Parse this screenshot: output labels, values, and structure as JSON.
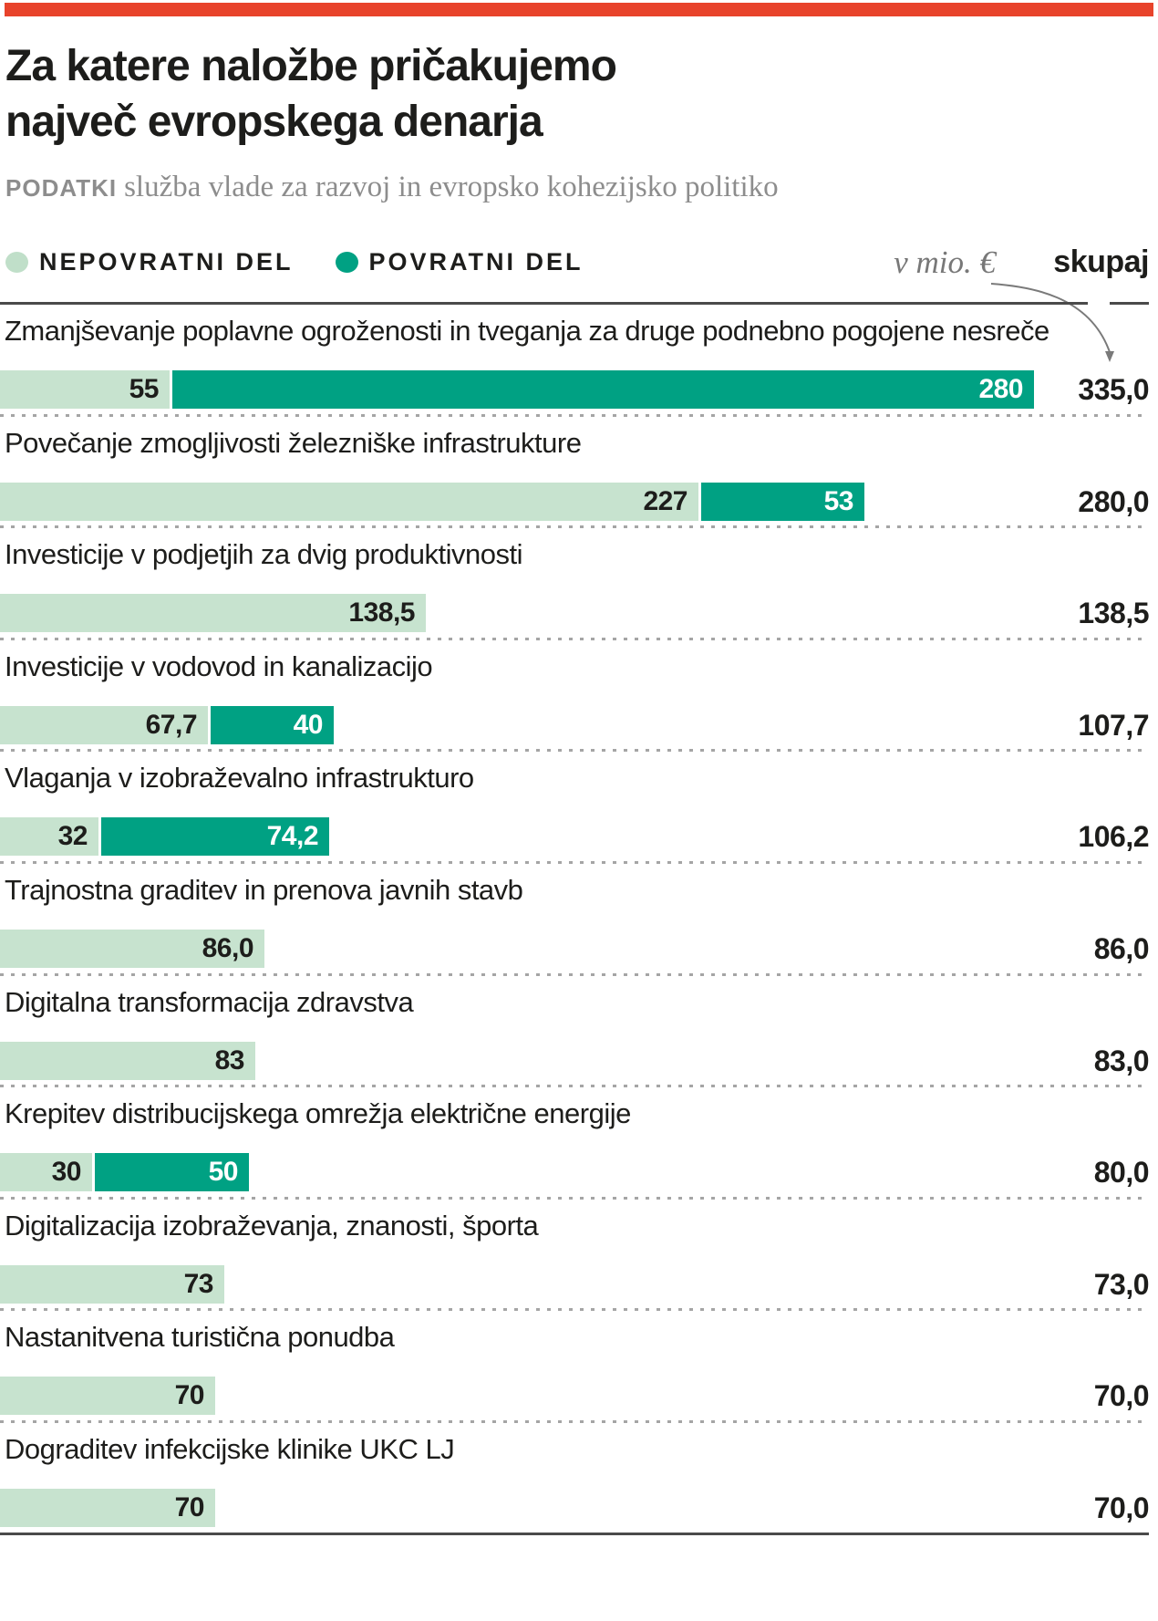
{
  "page": {
    "title_line1": "Za katere naložbe pričakujemo",
    "title_line2": "največ evropskega denarja",
    "source_label": "PODATKI",
    "source_text": "služba vlade za razvoj in evropsko kohezijsko politiko"
  },
  "legend": {
    "nepovratni_label": "NEPOVRATNI DEL",
    "povratni_label": "POVRATNI DEL",
    "unit_label": "v mio. €",
    "total_header": "skupaj"
  },
  "colors": {
    "accent_red": "#e8432b",
    "nepovratni_green": "#c7e3cf",
    "povratni_teal": "#00a183"
  },
  "chart_data": {
    "type": "bar",
    "orientation": "horizontal",
    "title": "Za katere naložbe pričakujemo največ evropskega denarja",
    "source": "služba vlade za razvoj in evropsko kohezijsko politiko",
    "unit": "mio €",
    "series_names": [
      "NEPOVRATNI DEL",
      "POVRATNI DEL"
    ],
    "legend_position": "top",
    "grid": false,
    "x_max": 335,
    "rows": [
      {
        "label": "Zmanjševanje poplavne ogroženosti in tveganja za druge podnebno pogojene nesreče",
        "nepovratni": 55,
        "nepovratni_display": "55",
        "povratni": 280,
        "povratni_display": "280",
        "total": 335.0,
        "total_display": "335,0"
      },
      {
        "label": "Povečanje zmogljivosti železniške infrastrukture",
        "nepovratni": 227,
        "nepovratni_display": "227",
        "povratni": 53,
        "povratni_display": "53",
        "total": 280.0,
        "total_display": "280,0"
      },
      {
        "label": "Investicije v podjetjih za dvig produktivnosti",
        "nepovratni": 138.5,
        "nepovratni_display": "138,5",
        "povratni": null,
        "povratni_display": "",
        "total": 138.5,
        "total_display": "138,5"
      },
      {
        "label": "Investicije v vodovod in kanalizacijo",
        "nepovratni": 67.7,
        "nepovratni_display": "67,7",
        "povratni": 40,
        "povratni_display": "40",
        "total": 107.7,
        "total_display": "107,7"
      },
      {
        "label": "Vlaganja v izobraževalno infrastrukturo",
        "nepovratni": 32,
        "nepovratni_display": "32",
        "povratni": 74.2,
        "povratni_display": "74,2",
        "total": 106.2,
        "total_display": "106,2"
      },
      {
        "label": "Trajnostna graditev in prenova javnih stavb",
        "nepovratni": 86.0,
        "nepovratni_display": "86,0",
        "povratni": null,
        "povratni_display": "",
        "total": 86.0,
        "total_display": "86,0"
      },
      {
        "label": "Digitalna transformacija zdravstva",
        "nepovratni": 83,
        "nepovratni_display": "83",
        "povratni": null,
        "povratni_display": "",
        "total": 83.0,
        "total_display": "83,0"
      },
      {
        "label": "Krepitev distribucijskega omrežja električne energije",
        "nepovratni": 30,
        "nepovratni_display": "30",
        "povratni": 50,
        "povratni_display": "50",
        "total": 80.0,
        "total_display": "80,0"
      },
      {
        "label": "Digitalizacija izobraževanja, znanosti, športa",
        "nepovratni": 73,
        "nepovratni_display": "73",
        "povratni": null,
        "povratni_display": "",
        "total": 73.0,
        "total_display": "73,0"
      },
      {
        "label": "Nastanitvena turistična ponudba",
        "nepovratni": 70,
        "nepovratni_display": "70",
        "povratni": null,
        "povratni_display": "",
        "total": 70.0,
        "total_display": "70,0"
      },
      {
        "label": "Dograditev infekcijske klinike UKC LJ",
        "nepovratni": 70,
        "nepovratni_display": "70",
        "povratni": null,
        "povratni_display": "",
        "total": 70.0,
        "total_display": "70,0"
      }
    ]
  }
}
